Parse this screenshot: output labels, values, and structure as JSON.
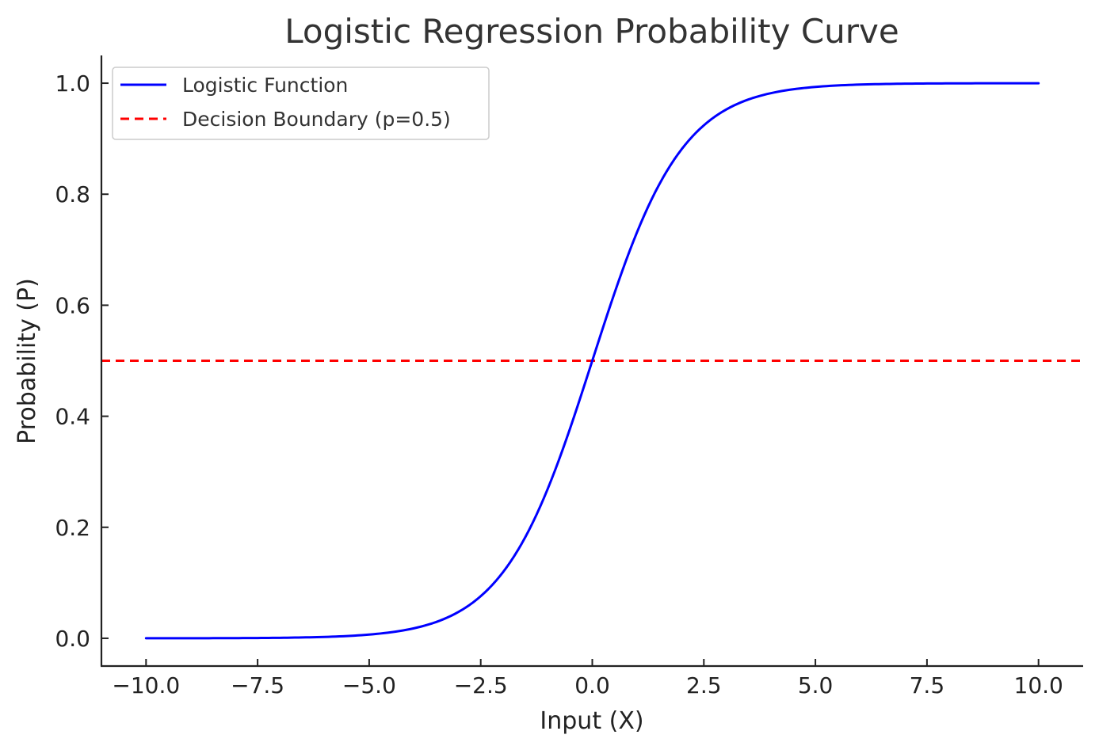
{
  "chart_data": {
    "type": "line",
    "title": "Logistic Regression Probability Curve",
    "xlabel": "Input (X)",
    "ylabel": "Probability (P)",
    "xlim": [
      -11.0,
      11.0
    ],
    "ylim": [
      -0.05,
      1.05
    ],
    "xticks": [
      -10.0,
      -7.5,
      -5.0,
      -2.5,
      0.0,
      2.5,
      5.0,
      7.5,
      10.0
    ],
    "xtick_labels": [
      "−10.0",
      "−7.5",
      "−5.0",
      "−2.5",
      "0.0",
      "2.5",
      "5.0",
      "7.5",
      "10.0"
    ],
    "yticks": [
      0.0,
      0.2,
      0.4,
      0.6,
      0.8,
      1.0
    ],
    "ytick_labels": [
      "0.0",
      "0.2",
      "0.4",
      "0.6",
      "0.8",
      "1.0"
    ],
    "grid": false,
    "legend_position": "top-left",
    "series": [
      {
        "name": "Logistic Function",
        "color": "#0000ff",
        "style": "solid",
        "x": [
          -10,
          -9,
          -8,
          -7,
          -6,
          -5,
          -4.5,
          -4,
          -3.5,
          -3,
          -2.5,
          -2,
          -1.5,
          -1,
          -0.5,
          0,
          0.5,
          1,
          1.5,
          2,
          2.5,
          3,
          3.5,
          4,
          4.5,
          5,
          6,
          7,
          8,
          9,
          10
        ],
        "values": [
          4.54e-05,
          0.000123,
          0.000335,
          0.000911,
          0.00247,
          0.00669,
          0.011,
          0.018,
          0.0293,
          0.0474,
          0.0759,
          0.1192,
          0.1824,
          0.2689,
          0.3775,
          0.5,
          0.6225,
          0.7311,
          0.8176,
          0.8808,
          0.9241,
          0.9526,
          0.9707,
          0.982,
          0.989,
          0.99331,
          0.99753,
          0.99909,
          0.99966,
          0.99988,
          0.99995
        ]
      }
    ],
    "reference_lines": [
      {
        "name": "Decision Boundary (p=0.5)",
        "orientation": "horizontal",
        "y": 0.5,
        "color": "#ff0000",
        "style": "dashed"
      }
    ]
  }
}
